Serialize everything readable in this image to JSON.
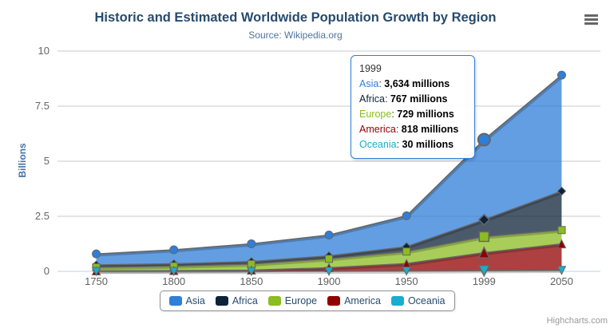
{
  "title": "Historic and Estimated Worldwide Population Growth by Region",
  "subtitle": "Source: Wikipedia.org",
  "credits": "Highcharts.com",
  "chart_data": {
    "type": "area",
    "stacking": "normal",
    "title": "Historic and Estimated Worldwide Population Growth by Region",
    "subtitle": "Source: Wikipedia.org",
    "categories": [
      "1750",
      "1800",
      "1850",
      "1900",
      "1950",
      "1999",
      "2050"
    ],
    "ylabel": "Billions",
    "xlabel": "",
    "ylim": [
      0,
      10
    ],
    "yticks": [
      "0",
      "2.5",
      "5",
      "7.5",
      "10"
    ],
    "grid": "horizontal",
    "legend_position": "bottom",
    "values_unit": "millions",
    "series": [
      {
        "name": "Asia",
        "color": "#2f7ed8",
        "marker": "circle",
        "values": [
          502,
          635,
          809,
          947,
          1402,
          3634,
          5268
        ]
      },
      {
        "name": "Africa",
        "color": "#0d233a",
        "marker": "diamond",
        "values": [
          106,
          107,
          111,
          133,
          221,
          767,
          1766
        ]
      },
      {
        "name": "Europe",
        "color": "#8bbc21",
        "marker": "square",
        "values": [
          163,
          203,
          276,
          408,
          547,
          729,
          628
        ]
      },
      {
        "name": "America",
        "color": "#910000",
        "marker": "triangle",
        "values": [
          18,
          31,
          54,
          156,
          339,
          818,
          1201
        ]
      },
      {
        "name": "Oceania",
        "color": "#1aadce",
        "marker": "triangle-down",
        "values": [
          2,
          2,
          2,
          6,
          13,
          30,
          46
        ]
      }
    ]
  },
  "tooltip": {
    "header": "1999",
    "hover_series": "Asia",
    "hover_category_index": 5,
    "rows": [
      {
        "name": "Asia",
        "color": "#2f7ed8",
        "value": "3,634 millions"
      },
      {
        "name": "Africa",
        "color": "#0d233a",
        "value": "767 millions"
      },
      {
        "name": "Europe",
        "color": "#8bbc21",
        "value": "729 millions"
      },
      {
        "name": "America",
        "color": "#910000",
        "value": "818 millions"
      },
      {
        "name": "Oceania",
        "color": "#1aadce",
        "value": "30 millions"
      }
    ]
  },
  "colors": {
    "title": "#274b6d",
    "subtitle": "#4d759e",
    "axis_label": "#666666",
    "y_axis_title": "#4572A7",
    "grid_line": "#c8c8c8",
    "x_axis_line": "#c0d0e0",
    "series_border_line": "#666666",
    "legend_border": "#909090",
    "legend_text": "#274b6d",
    "tooltip_border": "#2f7ed8",
    "credits_text": "#999999",
    "menu_icon": "#666666"
  }
}
